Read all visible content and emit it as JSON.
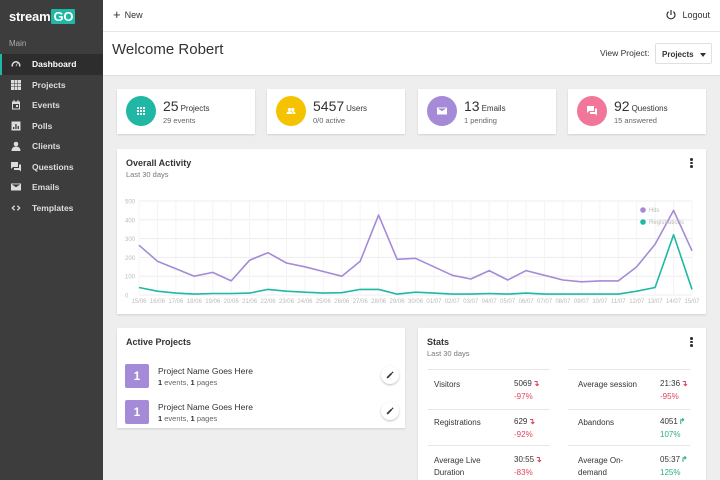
{
  "sidebar": {
    "logo_text": "stream",
    "logo_accent": "GO",
    "section_label": "Main",
    "items": [
      {
        "label": "Dashboard",
        "icon": "dashboard-icon",
        "active": true
      },
      {
        "label": "Projects",
        "icon": "grid-icon"
      },
      {
        "label": "Events",
        "icon": "calendar-icon"
      },
      {
        "label": "Polls",
        "icon": "poll-icon"
      },
      {
        "label": "Clients",
        "icon": "person-icon"
      },
      {
        "label": "Questions",
        "icon": "chat-icon"
      },
      {
        "label": "Emails",
        "icon": "mail-icon"
      },
      {
        "label": "Templates",
        "icon": "code-icon"
      }
    ]
  },
  "topbar": {
    "new_label": "New",
    "logout_label": "Logout"
  },
  "header": {
    "welcome": "Welcome Robert",
    "view_label": "View Project:",
    "view_value": "Projects"
  },
  "stat_cards": [
    {
      "value": "25",
      "unit": "Projects",
      "sub": "29 events",
      "color": "#20b8a4",
      "icon": "grid-icon"
    },
    {
      "value": "5457",
      "unit": "Users",
      "sub": "0/0 active",
      "color": "#f5c200",
      "icon": "users-icon"
    },
    {
      "value": "13",
      "unit": "Emails",
      "sub": "1 pending",
      "color": "#a58ad8",
      "icon": "mail-icon"
    },
    {
      "value": "92",
      "unit": "Questions",
      "sub": "15 answered",
      "color": "#f2759a",
      "icon": "chat-icon"
    }
  ],
  "activity": {
    "title": "Overall Activity",
    "subtitle": "Last 30 days"
  },
  "chart_data": {
    "type": "line",
    "x": [
      "15/06",
      "16/06",
      "17/06",
      "18/06",
      "19/06",
      "20/06",
      "21/06",
      "22/06",
      "23/06",
      "24/06",
      "25/06",
      "26/06",
      "27/06",
      "28/06",
      "29/06",
      "30/06",
      "01/07",
      "02/07",
      "03/07",
      "04/07",
      "05/07",
      "06/07",
      "07/07",
      "08/07",
      "09/07",
      "10/07",
      "11/07",
      "12/07",
      "13/07",
      "14/07",
      "15/07"
    ],
    "series": [
      {
        "name": "Hits",
        "color": "#a58ad8",
        "values": [
          265,
          180,
          140,
          100,
          120,
          75,
          185,
          225,
          170,
          150,
          125,
          100,
          180,
          425,
          190,
          195,
          150,
          105,
          85,
          130,
          80,
          130,
          105,
          80,
          70,
          75,
          75,
          150,
          270,
          450,
          235
        ]
      },
      {
        "name": "Registrations",
        "color": "#20b8a4",
        "values": [
          40,
          20,
          10,
          5,
          8,
          8,
          10,
          30,
          20,
          15,
          10,
          12,
          30,
          30,
          5,
          15,
          10,
          5,
          5,
          8,
          5,
          10,
          5,
          5,
          5,
          5,
          5,
          20,
          40,
          320,
          30
        ]
      }
    ],
    "ylim": [
      0,
      500
    ],
    "yticks": [
      0,
      100,
      200,
      300,
      400,
      500
    ],
    "legend": "top-right",
    "grid": true
  },
  "active_projects": {
    "title": "Active Projects",
    "items": [
      {
        "badge": "1",
        "name": "Project Name Goes Here",
        "events": "1",
        "events_label": "events,",
        "pages": "1",
        "pages_label": "pages"
      },
      {
        "badge": "1",
        "name": "Project Name Goes Here",
        "events": "1",
        "events_label": "events,",
        "pages": "1",
        "pages_label": "pages"
      }
    ]
  },
  "stats": {
    "title": "Stats",
    "subtitle": "Last 30 days",
    "rows": [
      {
        "label": "Visitors",
        "value": "5069",
        "arrow": "↴",
        "change": "-97%",
        "trend": "neg"
      },
      {
        "label": "Average session",
        "value": "21:36",
        "arrow": "↴",
        "change": "-95%",
        "trend": "neg"
      },
      {
        "label": "Registrations",
        "value": "629",
        "arrow": "↴",
        "change": "-92%",
        "trend": "neg"
      },
      {
        "label": "Abandons",
        "value": "4051",
        "arrow": "↱",
        "change": "107%",
        "trend": "pos"
      },
      {
        "label": "Average Live Duration",
        "value": "30:55",
        "arrow": "↴",
        "change": "-83%",
        "trend": "neg"
      },
      {
        "label": "Average On-demand",
        "value": "05:37",
        "arrow": "↱",
        "change": "125%",
        "trend": "pos"
      }
    ]
  }
}
